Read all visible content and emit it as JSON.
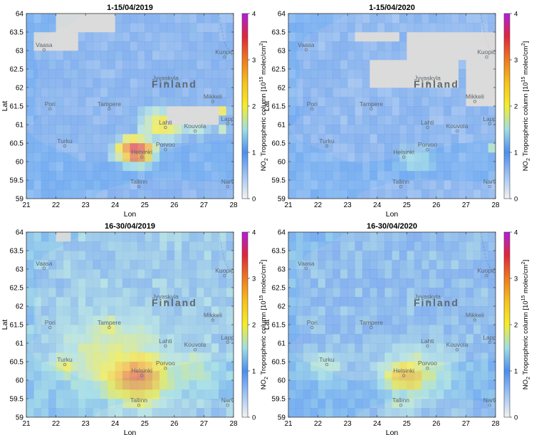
{
  "figure": {
    "colorbar_label": "NO2 Tropospheric column [10^15 molec/cm^2]",
    "colorbar_label_parts": {
      "pre": "NO",
      "sub": "2",
      "mid": " Tropospheric column [10",
      "sup": "15",
      "mid2": " molec/cm",
      "sup2": "2",
      "post": "]"
    },
    "colors": {
      "ocean": "#bfe3f2",
      "land": "#e8ecec",
      "cloud": "#d8d8d8",
      "border": "#9aa3a6"
    }
  },
  "chart_data": [
    {
      "type": "heatmap",
      "title": "1-15/04/2019",
      "xlabel": "Lon",
      "ylabel": "Lat",
      "xlim": [
        21,
        28
      ],
      "ylim": [
        59,
        64
      ],
      "xticks": [
        21,
        22,
        23,
        24,
        25,
        26,
        27,
        28
      ],
      "yticks": [
        59,
        59.5,
        60,
        60.5,
        61,
        61.5,
        62,
        62.5,
        63,
        63.5,
        64
      ],
      "colorbar": {
        "range": [
          0,
          4
        ],
        "ticks": [
          0,
          1,
          2,
          3,
          4
        ]
      },
      "background_level": 0.85,
      "no_data_regions": [
        {
          "lon": [
            21.3,
            22.8
          ],
          "lat": [
            63.1,
            63.6
          ]
        },
        {
          "lon": [
            22.0,
            24.0
          ],
          "lat": [
            63.6,
            64.0
          ]
        },
        {
          "lon": [
            25.7,
            27.4
          ],
          "lat": [
            61.0,
            61.6
          ]
        }
      ],
      "hotspots": [
        {
          "lon": 24.7,
          "lat": 60.3,
          "value": 3.7,
          "radius": 0.45
        },
        {
          "lon": 25.6,
          "lat": 61.0,
          "value": 2.1,
          "radius": 0.6
        },
        {
          "lon": 26.7,
          "lat": 60.9,
          "value": 1.6,
          "radius": 0.35
        },
        {
          "lon": 27.6,
          "lat": 61.3,
          "value": 2.6,
          "radius": 0.15
        },
        {
          "lon": 27.6,
          "lat": 60.8,
          "value": 2.0,
          "radius": 0.15
        }
      ]
    },
    {
      "type": "heatmap",
      "title": "1-15/04/2020",
      "xlabel": "Lon",
      "ylabel": "Lat",
      "xlim": [
        21,
        28
      ],
      "ylim": [
        59,
        64
      ],
      "xticks": [
        21,
        22,
        23,
        24,
        25,
        26,
        27,
        28
      ],
      "yticks": [
        59,
        59.5,
        60,
        60.5,
        61,
        61.5,
        62,
        62.5,
        63,
        63.5,
        64
      ],
      "colorbar": {
        "range": [
          0,
          4
        ],
        "ticks": [
          0,
          1,
          2,
          3,
          4
        ]
      },
      "background_level": 0.8,
      "no_data_regions": [
        {
          "lon": [
            25.0,
            28.0
          ],
          "lat": [
            62.7,
            63.6
          ]
        },
        {
          "lon": [
            23.7,
            26.8
          ],
          "lat": [
            62.0,
            62.7
          ]
        },
        {
          "lon": [
            27.0,
            28.0
          ],
          "lat": [
            61.5,
            62.7
          ]
        },
        {
          "lon": [
            23.2,
            24.8
          ],
          "lat": [
            63.3,
            63.6
          ]
        }
      ],
      "hotspots": [
        {
          "lon": 25.3,
          "lat": 60.1,
          "value": 1.5,
          "radius": 0.55
        },
        {
          "lon": 27.9,
          "lat": 60.4,
          "value": 1.6,
          "radius": 0.15
        }
      ]
    },
    {
      "type": "heatmap",
      "title": "16-30/04/2019",
      "xlabel": "Lon",
      "ylabel": "Lat",
      "xlim": [
        21,
        28
      ],
      "ylim": [
        59,
        64
      ],
      "xticks": [
        21,
        22,
        23,
        24,
        25,
        26,
        27,
        28
      ],
      "yticks": [
        59,
        59.5,
        60,
        60.5,
        61,
        61.5,
        62,
        62.5,
        63,
        63.5,
        64
      ],
      "colorbar": {
        "range": [
          0,
          4
        ],
        "ticks": [
          0,
          1,
          2,
          3,
          4
        ]
      },
      "background_level": 1.2,
      "no_data_regions": [
        {
          "lon": [
            22.0,
            22.4
          ],
          "lat": [
            63.8,
            64.0
          ]
        }
      ],
      "hotspots": [
        {
          "lon": 24.7,
          "lat": 60.1,
          "value": 3.2,
          "radius": 0.75
        },
        {
          "lon": 24.0,
          "lat": 60.6,
          "value": 1.9,
          "radius": 1.3
        },
        {
          "lon": 22.3,
          "lat": 60.4,
          "value": 1.9,
          "radius": 0.45
        },
        {
          "lon": 23.8,
          "lat": 61.4,
          "value": 1.8,
          "radius": 0.5
        },
        {
          "lon": 26.5,
          "lat": 60.3,
          "value": 1.7,
          "radius": 0.7
        },
        {
          "lon": 24.8,
          "lat": 59.5,
          "value": 2.0,
          "radius": 0.45
        }
      ]
    },
    {
      "type": "heatmap",
      "title": "16-30/04/2020",
      "xlabel": "Lon",
      "ylabel": "Lat",
      "xlim": [
        21,
        28
      ],
      "ylim": [
        59,
        64
      ],
      "xticks": [
        21,
        22,
        23,
        24,
        25,
        26,
        27,
        28
      ],
      "yticks": [
        59,
        59.5,
        60,
        60.5,
        61,
        61.5,
        62,
        62.5,
        63,
        63.5,
        64
      ],
      "colorbar": {
        "range": [
          0,
          4
        ],
        "ticks": [
          0,
          1,
          2,
          3,
          4
        ]
      },
      "background_level": 1.05,
      "no_data_regions": [],
      "hotspots": [
        {
          "lon": 25.0,
          "lat": 60.1,
          "value": 2.7,
          "radius": 0.55
        },
        {
          "lon": 25.3,
          "lat": 60.2,
          "value": 1.8,
          "radius": 1.0
        },
        {
          "lon": 22.2,
          "lat": 60.4,
          "value": 1.6,
          "radius": 0.5
        },
        {
          "lon": 24.8,
          "lat": 59.3,
          "value": 1.6,
          "radius": 0.4
        }
      ]
    }
  ],
  "map_labels": {
    "cities": [
      {
        "name": "Vaasa",
        "lon": 21.6,
        "lat": 63.1
      },
      {
        "name": "Kuopio",
        "lon": 27.7,
        "lat": 62.9
      },
      {
        "name": "Jyvaskyla",
        "lon": 25.7,
        "lat": 62.2
      },
      {
        "name": "Mikkeli",
        "lon": 27.3,
        "lat": 61.7
      },
      {
        "name": "Pori",
        "lon": 21.8,
        "lat": 61.5
      },
      {
        "name": "Tampere",
        "lon": 23.8,
        "lat": 61.5
      },
      {
        "name": "Lahti",
        "lon": 25.7,
        "lat": 61.0
      },
      {
        "name": "Kouvola",
        "lon": 26.7,
        "lat": 60.9
      },
      {
        "name": "Lapp",
        "lon": 27.8,
        "lat": 61.1
      },
      {
        "name": "Turku",
        "lon": 22.3,
        "lat": 60.5
      },
      {
        "name": "Porvoo",
        "lon": 25.7,
        "lat": 60.4
      },
      {
        "name": "Helsinki",
        "lon": 24.9,
        "lat": 60.2
      },
      {
        "name": "Tallinn",
        "lon": 24.8,
        "lat": 59.4
      },
      {
        "name": "Narv",
        "lon": 27.8,
        "lat": 59.4
      }
    ],
    "country": {
      "name": "Finland",
      "lon": 26.0,
      "lat": 62.0
    }
  }
}
